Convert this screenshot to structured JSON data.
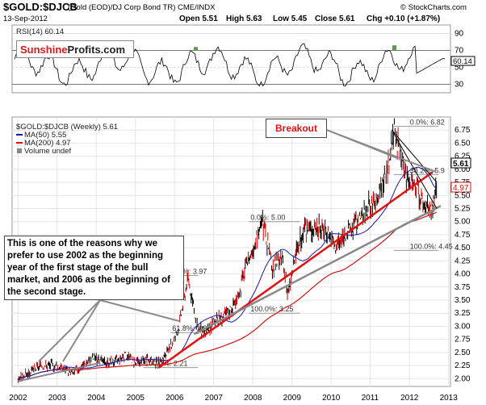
{
  "header": {
    "symbol": "$GOLD:$DJCB",
    "subtitle": "(Gold (EOD)/DJ Corp Bond TR)  CME/INDX",
    "source": "© StockCharts.com",
    "date": "13-Sep-2012",
    "open": "Open 5.51",
    "high": "High 5.63",
    "low": "Low 5.45",
    "close": "Close 5.61",
    "chg": "Chg +0.10 (+1.87%)"
  },
  "rsi_panel": {
    "label": "RSI(14) 60.14",
    "value_tag": "60.14",
    "ticks": [
      "90",
      "70",
      "50",
      "30"
    ]
  },
  "logo": {
    "part1": "Sunshine",
    "part2": "Profits.com"
  },
  "legend": {
    "main": "$GOLD:$DJCB (Weekly) 5.61",
    "ma50": "MA(50) 5.55",
    "ma200": "MA(200) 4.97",
    "volume": "Volume undef"
  },
  "price_tags": {
    "last": "5.61",
    "ma200": "4.97"
  },
  "annotations": {
    "breakout": "Breakout",
    "note": "This is one of the reasons why we prefer to use 2002 as the beginning year of the first stage of the bull market, and 2006 as the beginning of the second stage."
  },
  "colors": {
    "ma50": "#1a1aaa",
    "ma200": "#d21414",
    "trend_red": "#e01010",
    "trend_gray": "#888888",
    "up_bar": "#000000",
    "down_bar": "#cc0000"
  },
  "chart_data": [
    {
      "type": "line",
      "title": "RSI(14) 60.14",
      "ylim": [
        20,
        100
      ],
      "y_ticks": [
        30,
        50,
        70,
        90
      ],
      "last_value": 60.14
    },
    {
      "type": "line",
      "title": "$GOLD:$DJCB (Weekly) 5.61",
      "ylim": [
        1.85,
        7.0
      ],
      "y_ticks": [
        2.0,
        2.25,
        2.5,
        2.75,
        3.0,
        3.25,
        3.5,
        3.75,
        4.0,
        4.25,
        4.5,
        4.75,
        5.0,
        5.25,
        5.5,
        5.75,
        6.0,
        6.25,
        6.5,
        6.75
      ],
      "y_tick_labels": [
        "2.00",
        "2.25",
        "2.50",
        "2.75",
        "3.00",
        "3.25",
        "3.50",
        "3.75",
        "4.00",
        "4.25",
        "4.50",
        "4.75",
        "5.00",
        "5.25",
        "5.50",
        "5.75",
        "6.00",
        "6.25",
        "6.50",
        "6.75"
      ],
      "x_tick_labels": [
        "2002",
        "2003",
        "2004",
        "2005",
        "2006",
        "2007",
        "2008",
        "2009",
        "2010",
        "2011",
        "2012",
        "2013"
      ],
      "x_ticks": [
        2002,
        2003,
        2004,
        2005,
        2006,
        2007,
        2008,
        2009,
        2010,
        2011,
        2012,
        2013
      ],
      "xlim": [
        2001.85,
        2013.05
      ],
      "series": [
        {
          "name": "$GOLD:$DJCB",
          "x": [
            2002.0,
            2002.3,
            2002.6,
            2002.9,
            2003.1,
            2003.4,
            2003.7,
            2003.95,
            2004.2,
            2004.5,
            2004.8,
            2005.0,
            2005.3,
            2005.6,
            2005.85,
            2006.1,
            2006.35,
            2006.55,
            2006.8,
            2007.0,
            2007.3,
            2007.6,
            2007.85,
            2008.05,
            2008.25,
            2008.5,
            2008.75,
            2008.9,
            2009.1,
            2009.3,
            2009.6,
            2009.9,
            2010.1,
            2010.4,
            2010.7,
            2010.95,
            2011.2,
            2011.45,
            2011.62,
            2011.8,
            2012.0,
            2012.2,
            2012.4,
            2012.55,
            2012.7
          ],
          "values": [
            2.0,
            2.12,
            2.25,
            2.25,
            2.22,
            2.1,
            2.28,
            2.4,
            2.3,
            2.35,
            2.45,
            2.3,
            2.35,
            2.3,
            2.5,
            2.95,
            3.97,
            3.0,
            2.85,
            3.1,
            3.2,
            3.5,
            4.2,
            4.6,
            5.0,
            4.1,
            4.3,
            3.6,
            4.4,
            4.8,
            4.9,
            4.85,
            4.5,
            4.8,
            5.0,
            5.25,
            5.5,
            6.0,
            6.82,
            6.1,
            5.8,
            5.6,
            5.3,
            5.2,
            5.61
          ]
        },
        {
          "name": "MA(50)",
          "last": 5.55
        },
        {
          "name": "MA(200)",
          "last": 4.97
        }
      ],
      "fibonacci": [
        {
          "label": "0.0%: 6.82",
          "value": 6.82
        },
        {
          "label": "38.2%: 5.9",
          "value": 5.9
        },
        {
          "label": "100.0%: 4.45",
          "value": 4.45
        },
        {
          "label": "0.0%: 5.00",
          "value": 5.0
        },
        {
          "label": "100.0%: 3.25",
          "value": 3.25
        },
        {
          "label": "0.0%: 3.97",
          "value": 3.97
        },
        {
          "label": "61.8%: 2.88",
          "value": 2.88
        },
        {
          "label": "100.0%: 2.21",
          "value": 2.21
        }
      ]
    }
  ]
}
